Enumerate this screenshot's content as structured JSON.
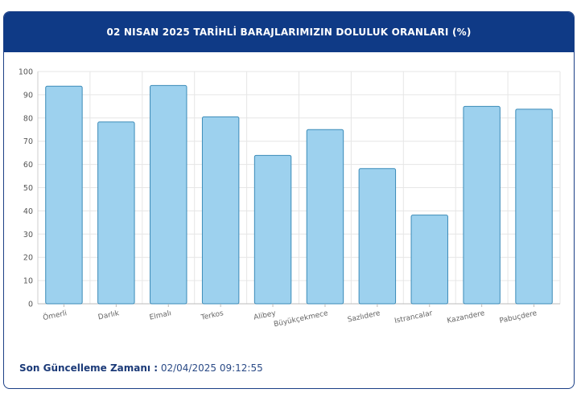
{
  "header": {
    "title": "02 NISAN 2025 TARİHLİ BARAJLARIMIZIN DOLULUK ORANLARI (%)"
  },
  "footer": {
    "label": "Son Güncelleme Zamanı :",
    "value": "02/04/2025 09:12:55"
  },
  "colors": {
    "header_bg": "#0f3a86",
    "bar_fill": "#9dd1ee",
    "bar_stroke": "#3b8bb8",
    "grid": "#e6e6e6"
  },
  "chart_data": {
    "type": "bar",
    "title": "02 NISAN 2025 TARİHLİ BARAJLARIMIZIN DOLULUK ORANLARI (%)",
    "xlabel": "",
    "ylabel": "",
    "ylim": [
      0,
      100
    ],
    "yticks": [
      0,
      10,
      20,
      30,
      40,
      50,
      60,
      70,
      80,
      90,
      100
    ],
    "grid": true,
    "legend": "none",
    "categories": [
      "Ömerli",
      "Darlık",
      "Elmalı",
      "Terkos",
      "Alibey",
      "Büyükçekmece",
      "Sazlıdere",
      "Istrancalar",
      "Kazandere",
      "Pabuçdere"
    ],
    "values": [
      93.7,
      78.3,
      94.0,
      80.5,
      63.9,
      75.0,
      58.2,
      38.2,
      85.0,
      83.8
    ]
  }
}
